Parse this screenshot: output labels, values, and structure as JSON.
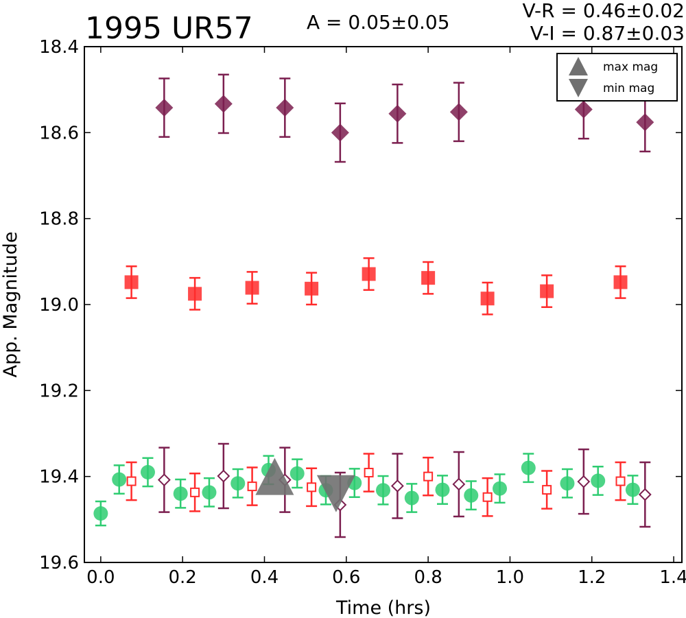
{
  "chart_data": {
    "type": "scatter",
    "title": "1995 UR57",
    "annotations": {
      "amplitude": "A  = 0.05±0.05",
      "v_r": "V-R = 0.46±0.02",
      "v_i": "V-I  = 0.87±0.03"
    },
    "xlabel": "Time (hrs)",
    "ylabel": "App. Magnitude",
    "xlim": [
      -0.04,
      1.42
    ],
    "ylim": [
      19.6,
      18.4
    ],
    "y_inverted": true,
    "grid": false,
    "legend_position": "top-right",
    "x_ticks": [
      "0.0",
      "0.2",
      "0.4",
      "0.6",
      "0.8",
      "1.0",
      "1.2",
      "1.4"
    ],
    "y_ticks": [
      "18.4",
      "18.6",
      "18.8",
      "19.0",
      "19.2",
      "19.4",
      "19.6"
    ],
    "colors": {
      "green": "#2ecc71",
      "red": "#ff2b2b",
      "purple": "#7b1f4f",
      "marker_gray": "#707070"
    },
    "series": [
      {
        "marker": "diamond",
        "filled": true,
        "color": "#7b1f4f",
        "points": [
          {
            "x": 0.155,
            "y": 18.542,
            "err": 0.068
          },
          {
            "x": 0.3,
            "y": 18.533,
            "err": 0.068
          },
          {
            "x": 0.45,
            "y": 18.542,
            "err": 0.068
          },
          {
            "x": 0.585,
            "y": 18.6,
            "err": 0.068
          },
          {
            "x": 0.725,
            "y": 18.556,
            "err": 0.068
          },
          {
            "x": 0.875,
            "y": 18.552,
            "err": 0.068
          },
          {
            "x": 1.18,
            "y": 18.546,
            "err": 0.068
          },
          {
            "x": 1.33,
            "y": 18.576,
            "err": 0.068
          }
        ]
      },
      {
        "marker": "square",
        "filled": true,
        "color": "#ff2b2b",
        "points": [
          {
            "x": 0.075,
            "y": 18.948,
            "err": 0.037
          },
          {
            "x": 0.23,
            "y": 18.975,
            "err": 0.037
          },
          {
            "x": 0.37,
            "y": 18.961,
            "err": 0.037
          },
          {
            "x": 0.515,
            "y": 18.963,
            "err": 0.037
          },
          {
            "x": 0.655,
            "y": 18.929,
            "err": 0.037
          },
          {
            "x": 0.8,
            "y": 18.938,
            "err": 0.037
          },
          {
            "x": 0.945,
            "y": 18.986,
            "err": 0.037
          },
          {
            "x": 1.09,
            "y": 18.969,
            "err": 0.037
          },
          {
            "x": 1.27,
            "y": 18.948,
            "err": 0.037
          }
        ]
      },
      {
        "marker": "circle",
        "filled": true,
        "color": "#2ecc71",
        "points": [
          {
            "x": 0.0,
            "y": 19.486,
            "err": 0.028
          },
          {
            "x": 0.045,
            "y": 19.407,
            "err": 0.033
          },
          {
            "x": 0.115,
            "y": 19.39,
            "err": 0.033
          },
          {
            "x": 0.195,
            "y": 19.44,
            "err": 0.033
          },
          {
            "x": 0.265,
            "y": 19.437,
            "err": 0.033
          },
          {
            "x": 0.335,
            "y": 19.416,
            "err": 0.033
          },
          {
            "x": 0.41,
            "y": 19.385,
            "err": 0.033
          },
          {
            "x": 0.48,
            "y": 19.393,
            "err": 0.033
          },
          {
            "x": 0.55,
            "y": 19.432,
            "err": 0.033
          },
          {
            "x": 0.62,
            "y": 19.415,
            "err": 0.033
          },
          {
            "x": 0.69,
            "y": 19.432,
            "err": 0.033
          },
          {
            "x": 0.76,
            "y": 19.45,
            "err": 0.033
          },
          {
            "x": 0.835,
            "y": 19.431,
            "err": 0.033
          },
          {
            "x": 0.905,
            "y": 19.444,
            "err": 0.033
          },
          {
            "x": 0.975,
            "y": 19.428,
            "err": 0.033
          },
          {
            "x": 1.045,
            "y": 19.38,
            "err": 0.033
          },
          {
            "x": 1.14,
            "y": 19.416,
            "err": 0.033
          },
          {
            "x": 1.215,
            "y": 19.41,
            "err": 0.033
          },
          {
            "x": 1.3,
            "y": 19.431,
            "err": 0.033
          }
        ]
      },
      {
        "marker": "square",
        "filled": false,
        "color": "#ff2b2b",
        "points": [
          {
            "x": 0.075,
            "y": 19.411,
            "err": 0.044
          },
          {
            "x": 0.23,
            "y": 19.437,
            "err": 0.044
          },
          {
            "x": 0.37,
            "y": 19.423,
            "err": 0.044
          },
          {
            "x": 0.515,
            "y": 19.425,
            "err": 0.044
          },
          {
            "x": 0.655,
            "y": 19.391,
            "err": 0.044
          },
          {
            "x": 0.8,
            "y": 19.4,
            "err": 0.044
          },
          {
            "x": 0.945,
            "y": 19.448,
            "err": 0.044
          },
          {
            "x": 1.09,
            "y": 19.431,
            "err": 0.044
          },
          {
            "x": 1.27,
            "y": 19.411,
            "err": 0.044
          }
        ]
      },
      {
        "marker": "diamond",
        "filled": false,
        "color": "#7b1f4f",
        "points": [
          {
            "x": 0.155,
            "y": 19.408,
            "err": 0.075
          },
          {
            "x": 0.3,
            "y": 19.399,
            "err": 0.075
          },
          {
            "x": 0.45,
            "y": 19.408,
            "err": 0.075
          },
          {
            "x": 0.585,
            "y": 19.466,
            "err": 0.075
          },
          {
            "x": 0.725,
            "y": 19.422,
            "err": 0.075
          },
          {
            "x": 0.875,
            "y": 19.418,
            "err": 0.075
          },
          {
            "x": 1.18,
            "y": 19.412,
            "err": 0.075
          },
          {
            "x": 1.33,
            "y": 19.442,
            "err": 0.075
          }
        ]
      }
    ],
    "extrema_markers": [
      {
        "label": "max mag",
        "symbol": "triangle-up",
        "x": 0.425,
        "y": 19.4
      },
      {
        "label": "min mag",
        "symbol": "triangle-down",
        "x": 0.575,
        "y": 19.44
      }
    ]
  }
}
